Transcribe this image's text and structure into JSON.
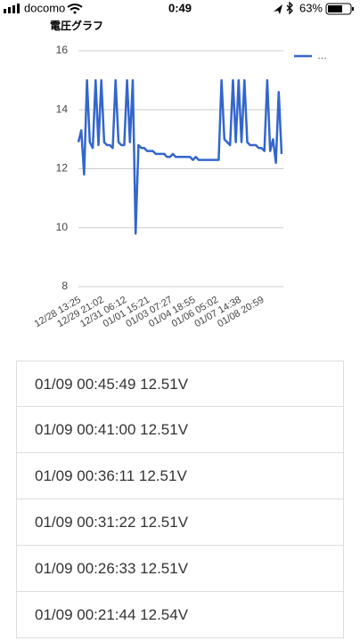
{
  "status_bar": {
    "carrier": "docomo",
    "time": "0:49",
    "battery": "63%"
  },
  "chart_data": {
    "type": "line",
    "title": "電圧グラフ",
    "categories": [
      "12/28 13:25",
      null,
      null,
      null,
      null,
      null,
      null,
      null,
      "12/29 21:02",
      null,
      null,
      null,
      null,
      null,
      null,
      null,
      "12/31 06:12",
      null,
      null,
      null,
      null,
      null,
      null,
      null,
      "01/01 15:21",
      null,
      null,
      null,
      null,
      null,
      null,
      null,
      "01/03 07:27",
      null,
      null,
      null,
      null,
      null,
      null,
      null,
      "01/04 18:55",
      null,
      null,
      null,
      null,
      null,
      null,
      null,
      "01/06 05:02",
      null,
      null,
      null,
      null,
      null,
      null,
      null,
      "01/07 14:38",
      null,
      null,
      null,
      null,
      null,
      null,
      null,
      "01/08 20:59",
      null,
      null,
      null,
      null,
      null,
      null,
      null
    ],
    "series": [
      {
        "name": "…",
        "color": "#3366cc",
        "values": [
          12.9,
          13.3,
          11.8,
          15.0,
          12.9,
          12.7,
          15.0,
          12.8,
          15.0,
          12.9,
          12.8,
          12.8,
          12.7,
          15.0,
          12.9,
          12.8,
          12.8,
          15.0,
          12.9,
          15.0,
          9.8,
          12.8,
          12.7,
          12.7,
          12.6,
          12.6,
          12.6,
          12.5,
          12.5,
          12.5,
          12.5,
          12.4,
          12.4,
          12.5,
          12.4,
          12.4,
          12.4,
          12.4,
          12.4,
          12.4,
          12.3,
          12.4,
          12.3,
          12.3,
          12.3,
          12.3,
          12.3,
          12.3,
          12.3,
          12.3,
          15.0,
          13.0,
          12.9,
          12.8,
          15.0,
          12.9,
          15.0,
          12.9,
          15.0,
          12.9,
          12.8,
          12.8,
          12.8,
          12.7,
          12.7,
          12.6,
          15.0,
          12.6,
          13.0,
          12.2,
          14.6,
          12.5
        ]
      }
    ],
    "ylim": [
      8,
      16
    ],
    "yticks": [
      8,
      10,
      12,
      14,
      16
    ],
    "grid": true,
    "legend": "right"
  },
  "list": {
    "items": [
      "01/09 00:45:49 12.51V",
      "01/09 00:41:00 12.51V",
      "01/09 00:36:11 12.51V",
      "01/09 00:31:22 12.51V",
      "01/09 00:26:33 12.51V",
      "01/09 00:21:44 12.54V"
    ]
  }
}
